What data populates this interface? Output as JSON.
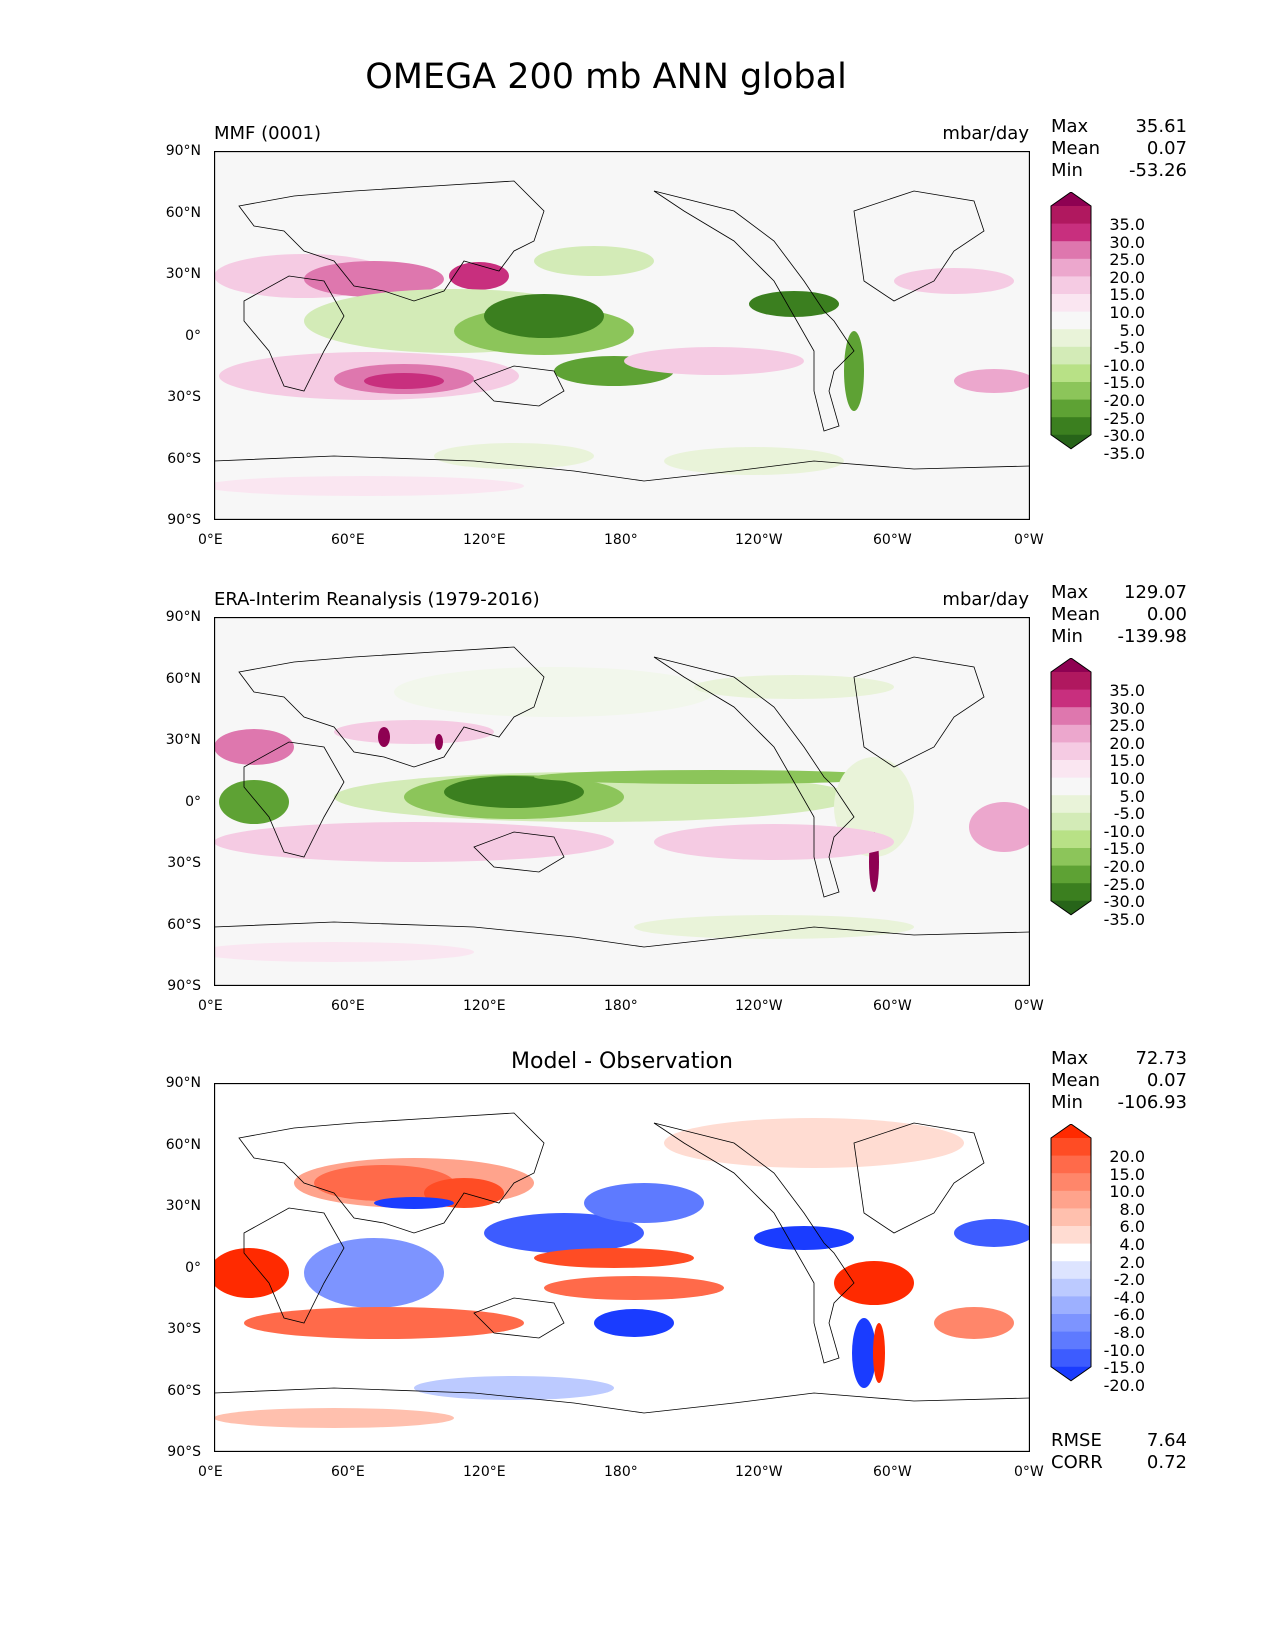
{
  "title": "OMEGA 200 mb ANN global",
  "x_ticks": [
    "0°E",
    "60°E",
    "120°E",
    "180°",
    "120°W",
    "60°W",
    "0°W"
  ],
  "y_ticks": [
    "90°N",
    "60°N",
    "30°N",
    "0°",
    "30°S",
    "60°S",
    "90°S"
  ],
  "panels": [
    {
      "left_title": "MMF (0001)",
      "center_title": "",
      "units": "mbar/day",
      "stats": [
        {
          "label": "Max",
          "value": "35.61"
        },
        {
          "label": "Mean",
          "value": "0.07"
        },
        {
          "label": "Min",
          "value": "-53.26"
        }
      ],
      "colorbar": {
        "ticks": [
          "35.0",
          "30.0",
          "25.0",
          "20.0",
          "15.0",
          "10.0",
          "5.0",
          "-5.0",
          "-10.0",
          "-15.0",
          "-20.0",
          "-25.0",
          "-30.0",
          "-35.0"
        ],
        "colors": [
          "#8e0152",
          "#b0185f",
          "#c82f7e",
          "#de77ae",
          "#eca7cd",
          "#f5cbe3",
          "#fae6f1",
          "#f7f7f7",
          "#e9f3d9",
          "#d3ebb7",
          "#b8e186",
          "#8cc55a",
          "#5ea234",
          "#3b7f1f",
          "#276419"
        ]
      },
      "footer_stats": []
    },
    {
      "left_title": "ERA-Interim Reanalysis (1979-2016)",
      "center_title": "",
      "units": "mbar/day",
      "stats": [
        {
          "label": "Max",
          "value": "129.07"
        },
        {
          "label": "Mean",
          "value": "0.00"
        },
        {
          "label": "Min",
          "value": "-139.98"
        }
      ],
      "colorbar": {
        "ticks": [
          "35.0",
          "30.0",
          "25.0",
          "20.0",
          "15.0",
          "10.0",
          "5.0",
          "-5.0",
          "-10.0",
          "-15.0",
          "-20.0",
          "-25.0",
          "-30.0",
          "-35.0"
        ],
        "colors": [
          "#8e0152",
          "#b0185f",
          "#c82f7e",
          "#de77ae",
          "#eca7cd",
          "#f5cbe3",
          "#fae6f1",
          "#f7f7f7",
          "#e9f3d9",
          "#d3ebb7",
          "#b8e186",
          "#8cc55a",
          "#5ea234",
          "#3b7f1f",
          "#276419"
        ]
      },
      "footer_stats": []
    },
    {
      "left_title": "",
      "center_title": "Model - Observation",
      "units": "",
      "stats": [
        {
          "label": "Max",
          "value": "72.73"
        },
        {
          "label": "Mean",
          "value": "0.07"
        },
        {
          "label": "Min",
          "value": "-106.93"
        }
      ],
      "colorbar": {
        "ticks": [
          "20.0",
          "15.0",
          "10.0",
          "8.0",
          "6.0",
          "4.0",
          "2.0",
          "-2.0",
          "-4.0",
          "-6.0",
          "-8.0",
          "-10.0",
          "-15.0",
          "-20.0"
        ],
        "colors": [
          "#ff2a00",
          "#ff4c24",
          "#ff6a4a",
          "#ff866a",
          "#ffa38c",
          "#ffc0ae",
          "#ffdcd2",
          "#ffffff",
          "#dde4ff",
          "#bccaff",
          "#9db0ff",
          "#7d94ff",
          "#5e7aff",
          "#3d5cff",
          "#1a3cff"
        ]
      },
      "footer_stats": [
        {
          "label": "RMSE",
          "value": "7.64"
        },
        {
          "label": "CORR",
          "value": "0.72"
        }
      ]
    }
  ]
}
